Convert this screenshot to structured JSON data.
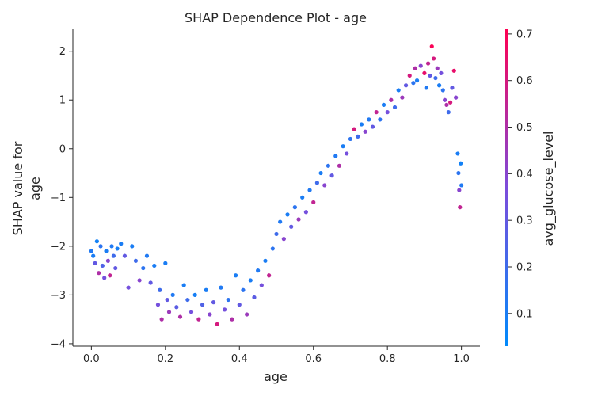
{
  "chart_data": {
    "type": "scatter",
    "title": "SHAP Dependence Plot - age",
    "xlabel": "age",
    "ylabel_lines": [
      "SHAP value for",
      "age"
    ],
    "xlim": [
      -0.05,
      1.05
    ],
    "ylim": [
      -4.05,
      2.45
    ],
    "x_ticks": [
      0.0,
      0.2,
      0.4,
      0.6,
      0.8,
      1.0
    ],
    "x_tick_labels": [
      "0.0",
      "0.2",
      "0.4",
      "0.6",
      "0.8",
      "1.0"
    ],
    "y_ticks": [
      -4,
      -3,
      -2,
      -1,
      0,
      1,
      2
    ],
    "y_tick_labels": [
      "−4",
      "−3",
      "−2",
      "−1",
      "0",
      "1",
      "2"
    ],
    "colorbar": {
      "label": "avg_glucose_level",
      "range": [
        0.03,
        0.71
      ],
      "ticks": [
        0.1,
        0.2,
        0.3,
        0.4,
        0.5,
        0.6,
        0.7
      ],
      "tick_labels": [
        "0.1",
        "0.2",
        "0.3",
        "0.4",
        "0.5",
        "0.6",
        "0.7"
      ],
      "colors": [
        "#008afb",
        "#7c4cdb",
        "#ff0052"
      ]
    },
    "grid": false,
    "legend": "colorbar-right",
    "points": [
      [
        0.0,
        -2.1,
        0.12
      ],
      [
        0.005,
        -2.2,
        0.1
      ],
      [
        0.01,
        -2.35,
        0.3
      ],
      [
        0.015,
        -1.9,
        0.08
      ],
      [
        0.02,
        -2.55,
        0.5
      ],
      [
        0.025,
        -2.0,
        0.15
      ],
      [
        0.03,
        -2.4,
        0.25
      ],
      [
        0.035,
        -2.65,
        0.35
      ],
      [
        0.04,
        -2.1,
        0.1
      ],
      [
        0.045,
        -2.3,
        0.4
      ],
      [
        0.05,
        -2.6,
        0.55
      ],
      [
        0.055,
        -2.0,
        0.12
      ],
      [
        0.06,
        -2.2,
        0.2
      ],
      [
        0.065,
        -2.45,
        0.3
      ],
      [
        0.07,
        -2.05,
        0.09
      ],
      [
        0.08,
        -1.95,
        0.1
      ],
      [
        0.09,
        -2.2,
        0.3
      ],
      [
        0.1,
        -2.85,
        0.35
      ],
      [
        0.11,
        -2.0,
        0.1
      ],
      [
        0.12,
        -2.3,
        0.2
      ],
      [
        0.13,
        -2.7,
        0.4
      ],
      [
        0.14,
        -2.45,
        0.15
      ],
      [
        0.15,
        -2.2,
        0.12
      ],
      [
        0.16,
        -2.75,
        0.3
      ],
      [
        0.17,
        -2.4,
        0.1
      ],
      [
        0.18,
        -3.2,
        0.35
      ],
      [
        0.185,
        -2.9,
        0.2
      ],
      [
        0.19,
        -3.5,
        0.5
      ],
      [
        0.2,
        -2.35,
        0.1
      ],
      [
        0.205,
        -3.1,
        0.3
      ],
      [
        0.21,
        -3.35,
        0.45
      ],
      [
        0.22,
        -3.0,
        0.12
      ],
      [
        0.23,
        -3.25,
        0.28
      ],
      [
        0.24,
        -3.45,
        0.5
      ],
      [
        0.25,
        -2.8,
        0.1
      ],
      [
        0.26,
        -3.1,
        0.2
      ],
      [
        0.27,
        -3.35,
        0.35
      ],
      [
        0.28,
        -3.0,
        0.09
      ],
      [
        0.29,
        -3.5,
        0.55
      ],
      [
        0.3,
        -3.2,
        0.25
      ],
      [
        0.31,
        -2.9,
        0.1
      ],
      [
        0.32,
        -3.4,
        0.4
      ],
      [
        0.33,
        -3.15,
        0.3
      ],
      [
        0.34,
        -3.6,
        0.6
      ],
      [
        0.35,
        -2.85,
        0.12
      ],
      [
        0.36,
        -3.3,
        0.35
      ],
      [
        0.37,
        -3.1,
        0.15
      ],
      [
        0.38,
        -3.5,
        0.5
      ],
      [
        0.39,
        -2.6,
        0.1
      ],
      [
        0.4,
        -3.2,
        0.3
      ],
      [
        0.41,
        -2.9,
        0.15
      ],
      [
        0.42,
        -3.4,
        0.45
      ],
      [
        0.43,
        -2.7,
        0.1
      ],
      [
        0.44,
        -3.05,
        0.28
      ],
      [
        0.45,
        -2.5,
        0.12
      ],
      [
        0.46,
        -2.8,
        0.35
      ],
      [
        0.47,
        -2.3,
        0.1
      ],
      [
        0.48,
        -2.6,
        0.55
      ],
      [
        0.49,
        -2.05,
        0.15
      ],
      [
        0.5,
        -1.75,
        0.2
      ],
      [
        0.51,
        -1.5,
        0.12
      ],
      [
        0.52,
        -1.85,
        0.4
      ],
      [
        0.53,
        -1.35,
        0.1
      ],
      [
        0.54,
        -1.6,
        0.3
      ],
      [
        0.55,
        -1.2,
        0.15
      ],
      [
        0.56,
        -1.45,
        0.45
      ],
      [
        0.57,
        -1.0,
        0.1
      ],
      [
        0.58,
        -1.3,
        0.35
      ],
      [
        0.59,
        -0.85,
        0.12
      ],
      [
        0.6,
        -1.1,
        0.55
      ],
      [
        0.61,
        -0.7,
        0.2
      ],
      [
        0.62,
        -0.5,
        0.1
      ],
      [
        0.63,
        -0.75,
        0.4
      ],
      [
        0.64,
        -0.35,
        0.15
      ],
      [
        0.65,
        -0.55,
        0.3
      ],
      [
        0.66,
        -0.15,
        0.12
      ],
      [
        0.67,
        -0.35,
        0.5
      ],
      [
        0.68,
        0.05,
        0.1
      ],
      [
        0.69,
        -0.1,
        0.35
      ],
      [
        0.7,
        0.2,
        0.15
      ],
      [
        0.71,
        0.4,
        0.6
      ],
      [
        0.72,
        0.25,
        0.2
      ],
      [
        0.73,
        0.5,
        0.1
      ],
      [
        0.74,
        0.35,
        0.4
      ],
      [
        0.75,
        0.6,
        0.12
      ],
      [
        0.76,
        0.45,
        0.3
      ],
      [
        0.77,
        0.75,
        0.55
      ],
      [
        0.78,
        0.6,
        0.15
      ],
      [
        0.79,
        0.9,
        0.1
      ],
      [
        0.8,
        0.75,
        0.35
      ],
      [
        0.81,
        1.0,
        0.5
      ],
      [
        0.82,
        0.85,
        0.2
      ],
      [
        0.83,
        1.2,
        0.1
      ],
      [
        0.84,
        1.05,
        0.45
      ],
      [
        0.85,
        1.3,
        0.3
      ],
      [
        0.86,
        1.5,
        0.6
      ],
      [
        0.87,
        1.35,
        0.15
      ],
      [
        0.875,
        1.65,
        0.5
      ],
      [
        0.88,
        1.4,
        0.1
      ],
      [
        0.89,
        1.7,
        0.4
      ],
      [
        0.9,
        1.55,
        0.65
      ],
      [
        0.905,
        1.25,
        0.12
      ],
      [
        0.91,
        1.75,
        0.55
      ],
      [
        0.915,
        1.5,
        0.3
      ],
      [
        0.92,
        2.1,
        0.7
      ],
      [
        0.925,
        1.85,
        0.6
      ],
      [
        0.93,
        1.45,
        0.2
      ],
      [
        0.935,
        1.65,
        0.45
      ],
      [
        0.94,
        1.3,
        0.1
      ],
      [
        0.945,
        1.55,
        0.35
      ],
      [
        0.95,
        1.2,
        0.15
      ],
      [
        0.955,
        1.0,
        0.4
      ],
      [
        0.96,
        0.9,
        0.5
      ],
      [
        0.965,
        0.75,
        0.2
      ],
      [
        0.97,
        0.95,
        0.6
      ],
      [
        0.975,
        1.25,
        0.3
      ],
      [
        0.98,
        1.6,
        0.65
      ],
      [
        0.985,
        1.05,
        0.4
      ],
      [
        0.99,
        -0.1,
        0.1
      ],
      [
        0.992,
        -0.5,
        0.15
      ],
      [
        0.994,
        -0.85,
        0.4
      ],
      [
        0.996,
        -1.2,
        0.55
      ],
      [
        0.998,
        -0.3,
        0.08
      ],
      [
        1.0,
        -0.75,
        0.12
      ]
    ]
  }
}
